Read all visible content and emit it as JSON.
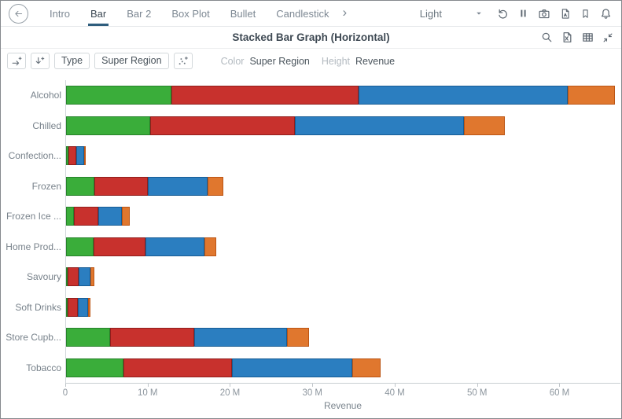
{
  "header": {
    "back_icon": "arrow-left",
    "tabs": [
      {
        "label": "Intro",
        "active": false
      },
      {
        "label": "Bar",
        "active": true
      },
      {
        "label": "Bar 2",
        "active": false
      },
      {
        "label": "Box Plot",
        "active": false
      },
      {
        "label": "Bullet",
        "active": false
      },
      {
        "label": "Candlestick",
        "active": false
      }
    ],
    "overflow_icon": "chevron-right",
    "theme": {
      "value": "Light",
      "caret_icon": "caret-down"
    },
    "action_icons": [
      "refresh",
      "pause",
      "camera",
      "pdf-export",
      "bookmark",
      "notifications"
    ]
  },
  "titlebar": {
    "title": "Stacked Bar Graph (Horizontal)",
    "action_icons": [
      "search",
      "excel-export",
      "table-view",
      "collapse"
    ]
  },
  "toolbar": {
    "icon_buttons_left": [
      "add-breakdown-across",
      "add-breakdown-down"
    ],
    "buttons": [
      "Type",
      "Super Region"
    ],
    "icon_buttons_right": [
      "scatter-plus"
    ],
    "mappings": [
      {
        "label": "Color",
        "value": "Super Region"
      },
      {
        "label": "Height",
        "value": "Revenue"
      }
    ]
  },
  "chart_data": {
    "type": "bar",
    "orientation": "horizontal",
    "stacked": true,
    "title": "Stacked Bar Graph (Horizontal)",
    "xlabel": "Revenue",
    "unit": "M",
    "xlim": [
      0,
      67.4
    ],
    "xticks": [
      0,
      10,
      20,
      30,
      40,
      50,
      60
    ],
    "xtick_labels": [
      "0",
      "10 M",
      "20 M",
      "30 M",
      "40 M",
      "50 M",
      "60 M"
    ],
    "grid": false,
    "legend": "none",
    "categories": [
      "Alcohol",
      "Chilled",
      "Confection...",
      "Frozen",
      "Frozen Ice ...",
      "Home Prod...",
      "Savoury",
      "Soft Drinks",
      "Store Cupb...",
      "Tobacco"
    ],
    "series": [
      {
        "name": "green",
        "color": "#3aad3a",
        "border": "#27822a",
        "values": [
          12.8,
          10.2,
          0.3,
          3.4,
          1.0,
          3.3,
          0.2,
          0.2,
          5.4,
          7.0
        ]
      },
      {
        "name": "red",
        "color": "#c8312d",
        "border": "#901e1c",
        "values": [
          22.8,
          17.6,
          0.9,
          6.5,
          2.9,
          6.4,
          1.3,
          1.2,
          10.2,
          13.2
        ]
      },
      {
        "name": "blue",
        "color": "#2b7ec0",
        "border": "#175c94",
        "values": [
          25.4,
          20.6,
          1.0,
          7.3,
          2.9,
          7.1,
          1.5,
          1.3,
          11.3,
          14.6
        ]
      },
      {
        "name": "orange",
        "color": "#e0772e",
        "border": "#bb5514",
        "values": [
          5.7,
          4.9,
          0.2,
          1.9,
          0.9,
          1.5,
          0.4,
          0.3,
          2.6,
          3.4
        ]
      }
    ]
  }
}
